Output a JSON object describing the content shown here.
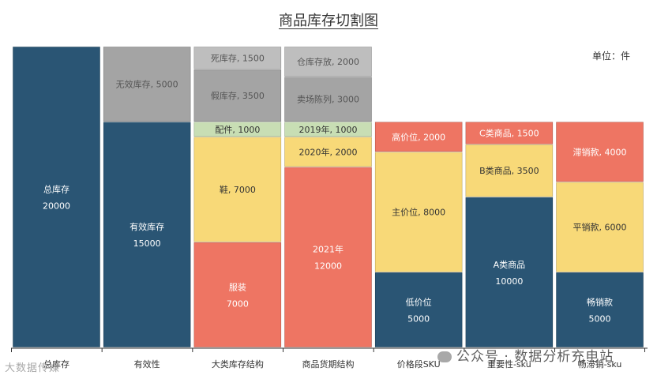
{
  "chart_data": {
    "type": "stacked-bar",
    "title": "商品库存切割图",
    "unit_label": "单位：件",
    "ylim": [
      0,
      20000
    ],
    "columns": [
      {
        "category": "总库存",
        "segments": [
          {
            "label": "总库存",
            "value": 20000,
            "color": "#2A5574",
            "text_color": "#ffffff",
            "layout": "stack"
          }
        ]
      },
      {
        "category": "有效性",
        "segments": [
          {
            "label": "有效库存",
            "value": 15000,
            "color": "#2A5574",
            "text_color": "#ffffff",
            "layout": "stack"
          },
          {
            "label": "无效库存",
            "value": 5000,
            "color": "#A4A4A4",
            "text_color": "#555555",
            "layout": "inline"
          }
        ]
      },
      {
        "category": "大类库存结构",
        "segments": [
          {
            "label": "服装",
            "value": 7000,
            "color": "#EE7563",
            "text_color": "#ffffff",
            "layout": "stack"
          },
          {
            "label": "鞋",
            "value": 7000,
            "color": "#F8D978",
            "text_color": "#333333",
            "layout": "inline"
          },
          {
            "label": "配件",
            "value": 1000,
            "color": "#C8DEB4",
            "text_color": "#333333",
            "layout": "inline"
          },
          {
            "label": "假库存",
            "value": 3500,
            "color": "#A4A4A4",
            "text_color": "#555555",
            "layout": "inline"
          },
          {
            "label": "死库存",
            "value": 1500,
            "color": "#BEBEBE",
            "text_color": "#555555",
            "layout": "inline"
          }
        ]
      },
      {
        "category": "商品货期结构",
        "segments": [
          {
            "label": "2021年",
            "value": 12000,
            "color": "#EE7563",
            "text_color": "#ffffff",
            "layout": "stack"
          },
          {
            "label": "2020年",
            "value": 2000,
            "color": "#F8D978",
            "text_color": "#333333",
            "layout": "inline"
          },
          {
            "label": "2019年",
            "value": 1000,
            "color": "#C8DEB4",
            "text_color": "#333333",
            "layout": "inline"
          },
          {
            "label": "卖场陈列",
            "value": 3000,
            "color": "#A4A4A4",
            "text_color": "#555555",
            "layout": "inline"
          },
          {
            "label": "仓库存放",
            "value": 2000,
            "color": "#BEBEBE",
            "text_color": "#555555",
            "layout": "inline"
          }
        ]
      },
      {
        "category": "价格段SKU",
        "segments": [
          {
            "label": "低价位",
            "value": 5000,
            "color": "#2A5574",
            "text_color": "#ffffff",
            "layout": "stack"
          },
          {
            "label": "主价位",
            "value": 8000,
            "color": "#F8D978",
            "text_color": "#333333",
            "layout": "inline"
          },
          {
            "label": "高价位",
            "value": 2000,
            "color": "#EE7563",
            "text_color": "#ffffff",
            "layout": "inline"
          }
        ]
      },
      {
        "category": "重要性-sku",
        "segments": [
          {
            "label": "A类商品",
            "value": 10000,
            "color": "#2A5574",
            "text_color": "#ffffff",
            "layout": "stack"
          },
          {
            "label": "B类商品",
            "value": 3500,
            "color": "#F8D978",
            "text_color": "#333333",
            "layout": "inline"
          },
          {
            "label": "C类商品",
            "value": 1500,
            "color": "#EE7563",
            "text_color": "#ffffff",
            "layout": "inline"
          }
        ]
      },
      {
        "category": "畅滞销-sku",
        "segments": [
          {
            "label": "畅销款",
            "value": 5000,
            "color": "#2A5574",
            "text_color": "#ffffff",
            "layout": "stack"
          },
          {
            "label": "平销款",
            "value": 6000,
            "color": "#F8D978",
            "text_color": "#333333",
            "layout": "inline"
          },
          {
            "label": "滞销款",
            "value": 4000,
            "color": "#EE7563",
            "text_color": "#ffffff",
            "layout": "inline"
          }
        ]
      }
    ]
  },
  "watermarks": {
    "right": "公众号 · 数据分析充电站",
    "left": "大数据传媒"
  }
}
